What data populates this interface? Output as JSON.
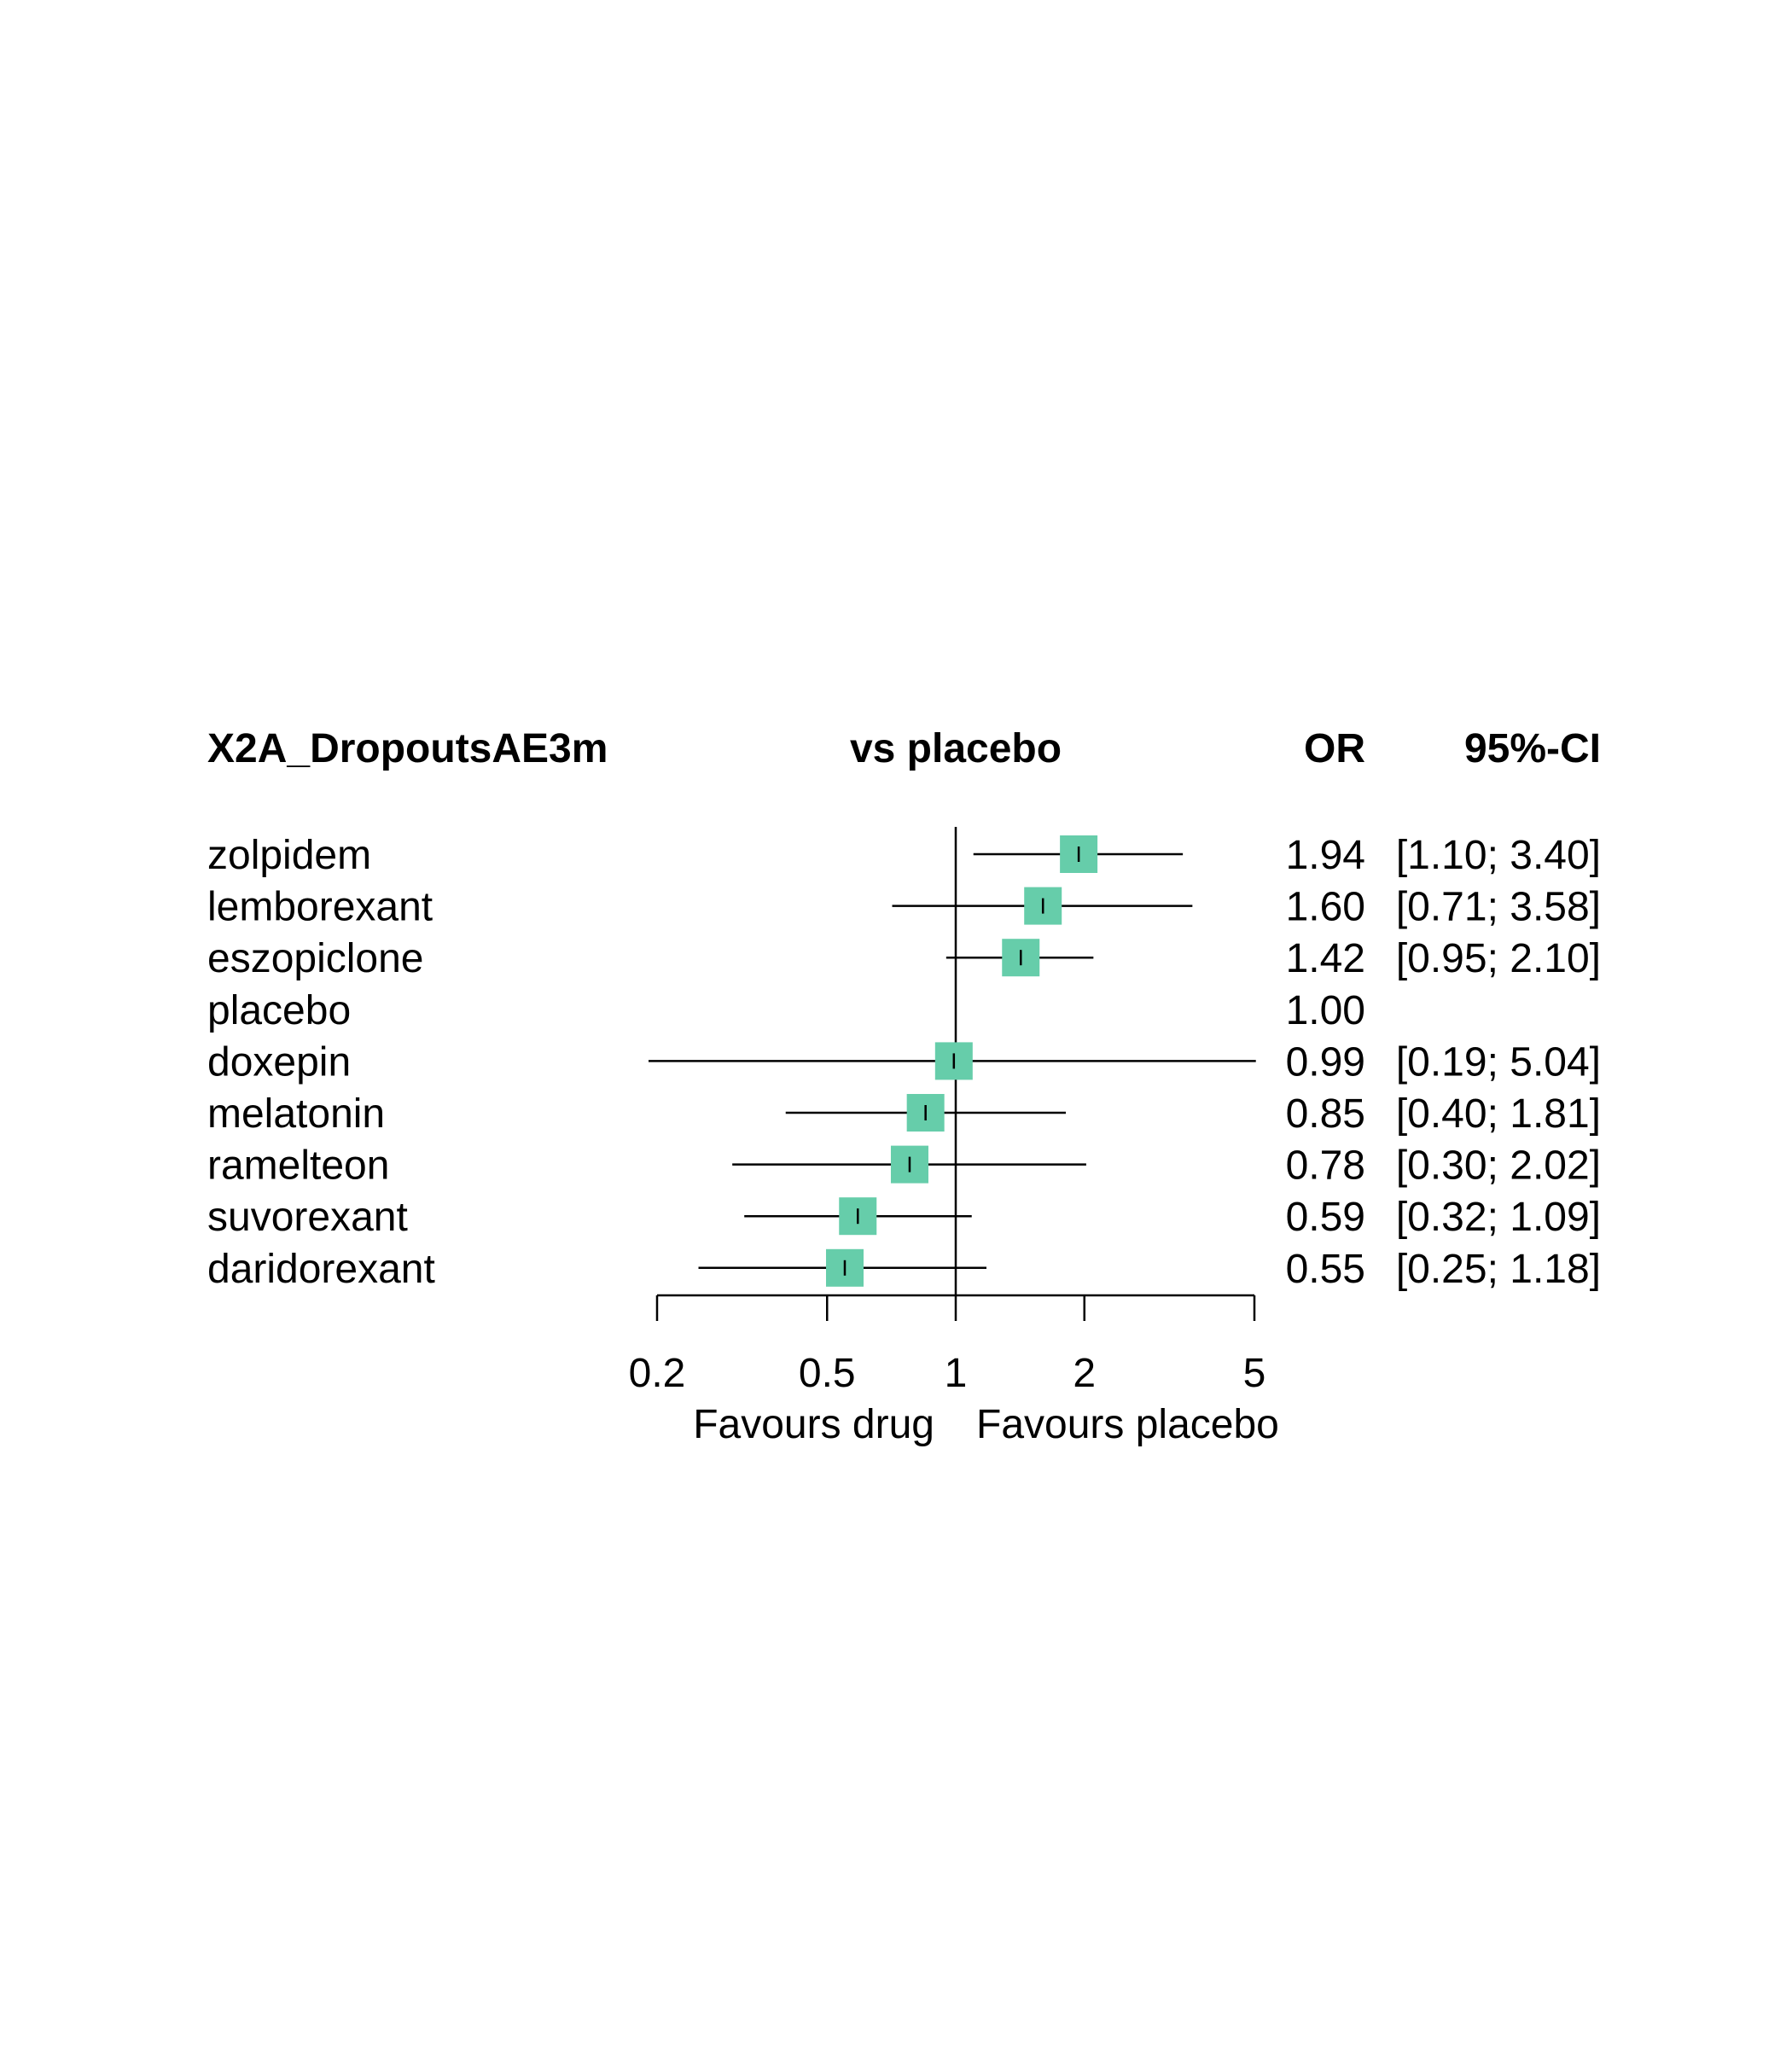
{
  "chart_data": {
    "type": "forest",
    "title": "X2A_DropoutsAE3m",
    "comparison_header": "vs placebo",
    "estimate_header": "OR",
    "ci_header": "95%-CI",
    "scale": "log",
    "reference_value": 1,
    "xlim": [
      0.2,
      5
    ],
    "x_ticks": [
      0.2,
      0.5,
      1,
      2,
      5
    ],
    "x_tick_labels": [
      "0.2",
      "0.5",
      "1",
      "2",
      "5"
    ],
    "favours_left": "Favours drug",
    "favours_right": "Favours placebo",
    "marker_color": "#66cdaa",
    "rows": [
      {
        "name": "zolpidem",
        "or": 1.94,
        "lower": 1.1,
        "upper": 3.4,
        "or_label": "1.94",
        "ci_label": "[1.10; 3.40]"
      },
      {
        "name": "lemborexant",
        "or": 1.6,
        "lower": 0.71,
        "upper": 3.58,
        "or_label": "1.60",
        "ci_label": "[0.71; 3.58]"
      },
      {
        "name": "eszopiclone",
        "or": 1.42,
        "lower": 0.95,
        "upper": 2.1,
        "or_label": "1.42",
        "ci_label": "[0.95; 2.10]"
      },
      {
        "name": "placebo",
        "or": 1.0,
        "lower": null,
        "upper": null,
        "or_label": "1.00",
        "ci_label": ""
      },
      {
        "name": "doxepin",
        "or": 0.99,
        "lower": 0.19,
        "upper": 5.04,
        "or_label": "0.99",
        "ci_label": "[0.19; 5.04]"
      },
      {
        "name": "melatonin",
        "or": 0.85,
        "lower": 0.4,
        "upper": 1.81,
        "or_label": "0.85",
        "ci_label": "[0.40; 1.81]"
      },
      {
        "name": "ramelteon",
        "or": 0.78,
        "lower": 0.3,
        "upper": 2.02,
        "or_label": "0.78",
        "ci_label": "[0.30; 2.02]"
      },
      {
        "name": "suvorexant",
        "or": 0.59,
        "lower": 0.32,
        "upper": 1.09,
        "or_label": "0.59",
        "ci_label": "[0.32; 1.09]"
      },
      {
        "name": "daridorexant",
        "or": 0.55,
        "lower": 0.25,
        "upper": 1.18,
        "or_label": "0.55",
        "ci_label": "[0.25; 1.18]"
      }
    ]
  }
}
